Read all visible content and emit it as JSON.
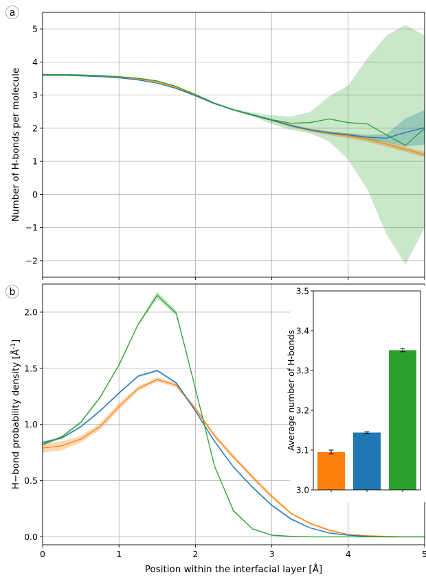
{
  "figure": {
    "xlabel": "Position within the interfacial layer [Å]",
    "panel_labels": [
      "a",
      "b"
    ],
    "colors": {
      "orange": "#ff7f0e",
      "blue": "#1f77b4",
      "green": "#2ca02c",
      "grid": "#b0b0b0"
    }
  },
  "chart_data": [
    {
      "type": "line",
      "panel": "a",
      "ylabel": "Number of H-bonds per molecule",
      "xlim": [
        0,
        5
      ],
      "ylim": [
        -2.5,
        5.5
      ],
      "grid": true,
      "xticks": [
        0,
        1,
        2,
        3,
        4,
        5
      ],
      "yticks": [
        -2,
        -1,
        0,
        1,
        2,
        3,
        4,
        5
      ],
      "ytick_labels": [
        "−2",
        "−1",
        "0",
        "1",
        "2",
        "3",
        "4",
        "5"
      ],
      "x": [
        0,
        0.25,
        0.5,
        0.75,
        1.0,
        1.25,
        1.5,
        1.75,
        2.0,
        2.25,
        2.5,
        2.75,
        3.0,
        3.25,
        3.5,
        3.75,
        4.0,
        4.25,
        4.5,
        4.75,
        5.0
      ],
      "series": [
        {
          "color": "#ff7f0e",
          "values": [
            3.61,
            3.61,
            3.6,
            3.58,
            3.55,
            3.49,
            3.4,
            3.23,
            3.0,
            2.75,
            2.55,
            2.4,
            2.24,
            2.08,
            1.94,
            1.85,
            1.77,
            1.67,
            1.52,
            1.36,
            1.2
          ],
          "lower": [
            3.6,
            3.6,
            3.59,
            3.57,
            3.54,
            3.48,
            3.39,
            3.22,
            2.99,
            2.74,
            2.54,
            2.38,
            2.21,
            2.04,
            1.89,
            1.79,
            1.7,
            1.59,
            1.44,
            1.28,
            1.12
          ],
          "upper": [
            3.62,
            3.62,
            3.61,
            3.59,
            3.56,
            3.5,
            3.41,
            3.24,
            3.01,
            2.76,
            2.56,
            2.42,
            2.27,
            2.12,
            1.99,
            1.91,
            1.84,
            1.75,
            1.6,
            1.44,
            1.28
          ]
        },
        {
          "color": "#1f77b4",
          "values": [
            3.6,
            3.6,
            3.58,
            3.56,
            3.52,
            3.46,
            3.36,
            3.2,
            2.98,
            2.74,
            2.55,
            2.39,
            2.24,
            2.08,
            1.95,
            1.86,
            1.8,
            1.73,
            1.7,
            1.87,
            2.02
          ],
          "lower": [
            3.59,
            3.59,
            3.57,
            3.55,
            3.51,
            3.45,
            3.35,
            3.19,
            2.97,
            2.73,
            2.54,
            2.38,
            2.22,
            2.05,
            1.92,
            1.82,
            1.75,
            1.66,
            1.58,
            1.45,
            1.5
          ],
          "upper": [
            3.61,
            3.61,
            3.59,
            3.57,
            3.53,
            3.47,
            3.37,
            3.21,
            2.99,
            2.75,
            2.56,
            2.4,
            2.26,
            2.11,
            1.98,
            1.9,
            1.85,
            1.8,
            1.82,
            2.3,
            2.55
          ]
        },
        {
          "color": "#2ca02c",
          "values": [
            3.62,
            3.62,
            3.61,
            3.59,
            3.56,
            3.51,
            3.43,
            3.26,
            3.02,
            2.76,
            2.56,
            2.41,
            2.26,
            2.15,
            2.17,
            2.28,
            2.17,
            2.13,
            1.8,
            1.48,
            2.0
          ],
          "lower": [
            3.61,
            3.61,
            3.6,
            3.58,
            3.55,
            3.5,
            3.42,
            3.25,
            3.01,
            2.75,
            2.53,
            2.35,
            2.13,
            1.95,
            1.85,
            1.6,
            1.05,
            0.15,
            -1.2,
            -2.12,
            -1.0
          ],
          "upper": [
            3.63,
            3.63,
            3.62,
            3.6,
            3.57,
            3.52,
            3.44,
            3.27,
            3.03,
            2.77,
            2.59,
            2.47,
            2.39,
            2.35,
            2.49,
            2.96,
            3.29,
            4.11,
            4.8,
            5.12,
            4.8
          ]
        }
      ]
    },
    {
      "type": "line",
      "panel": "b",
      "ylabel": "H−bond probability density [Å",
      "ylabel_sup": "-1",
      "ylabel_end": "]",
      "xlabel": "Position within the interfacial layer [Å]",
      "xlim": [
        0,
        5
      ],
      "ylim": [
        -0.07,
        2.25
      ],
      "grid": true,
      "xticks": [
        0,
        1,
        2,
        3,
        4,
        5
      ],
      "yticks": [
        0.0,
        0.5,
        1.0,
        1.5,
        2.0
      ],
      "ytick_labels": [
        "0.0",
        "0.5",
        "1.0",
        "1.5",
        "2.0"
      ],
      "x": [
        0,
        0.25,
        0.5,
        0.75,
        1.0,
        1.25,
        1.5,
        1.75,
        2.0,
        2.25,
        2.5,
        2.75,
        3.0,
        3.25,
        3.5,
        3.75,
        4.0,
        4.25,
        4.5,
        4.75,
        5.0
      ],
      "series": [
        {
          "color": "#ff7f0e",
          "values": [
            0.79,
            0.81,
            0.87,
            0.98,
            1.16,
            1.32,
            1.4,
            1.35,
            1.14,
            0.9,
            0.71,
            0.53,
            0.36,
            0.21,
            0.12,
            0.06,
            0.02,
            0.01,
            0.005,
            0.0,
            0.0
          ],
          "lower": [
            0.75,
            0.77,
            0.84,
            0.95,
            1.13,
            1.3,
            1.38,
            1.33,
            1.12,
            0.88,
            0.69,
            0.51,
            0.34,
            0.2,
            0.11,
            0.05,
            0.015,
            0.005,
            0.0,
            0.0,
            0.0
          ],
          "upper": [
            0.83,
            0.85,
            0.9,
            1.01,
            1.19,
            1.34,
            1.42,
            1.37,
            1.16,
            0.92,
            0.73,
            0.55,
            0.38,
            0.22,
            0.13,
            0.07,
            0.025,
            0.015,
            0.01,
            0.005,
            0.005
          ]
        },
        {
          "color": "#1f77b4",
          "values": [
            0.84,
            0.88,
            0.98,
            1.12,
            1.28,
            1.43,
            1.48,
            1.37,
            1.12,
            0.85,
            0.62,
            0.44,
            0.28,
            0.16,
            0.08,
            0.035,
            0.015,
            0.005,
            0.0,
            0.0,
            0.0
          ],
          "lower": [
            0.83,
            0.87,
            0.97,
            1.11,
            1.27,
            1.42,
            1.47,
            1.36,
            1.11,
            0.84,
            0.61,
            0.43,
            0.27,
            0.15,
            0.075,
            0.03,
            0.01,
            0.0,
            0.0,
            0.0,
            0.0
          ],
          "upper": [
            0.85,
            0.89,
            0.99,
            1.13,
            1.29,
            1.44,
            1.49,
            1.38,
            1.13,
            0.86,
            0.63,
            0.45,
            0.29,
            0.17,
            0.085,
            0.04,
            0.02,
            0.01,
            0.005,
            0.0,
            0.0
          ]
        },
        {
          "color": "#2ca02c",
          "values": [
            0.82,
            0.89,
            1.02,
            1.24,
            1.53,
            1.89,
            2.15,
            1.99,
            1.32,
            0.63,
            0.23,
            0.07,
            0.015,
            0.005,
            0.0,
            0.0,
            0.0,
            0.0,
            0.0,
            0.0,
            0.0
          ],
          "lower": [
            0.81,
            0.88,
            1.01,
            1.23,
            1.52,
            1.88,
            2.12,
            1.97,
            1.31,
            0.62,
            0.22,
            0.065,
            0.01,
            0.0,
            0.0,
            0.0,
            0.0,
            0.0,
            0.0,
            0.0,
            0.0
          ],
          "upper": [
            0.83,
            0.9,
            1.03,
            1.25,
            1.54,
            1.9,
            2.18,
            2.01,
            1.33,
            0.64,
            0.24,
            0.075,
            0.02,
            0.01,
            0.005,
            0.0,
            0.0,
            0.0,
            0.0,
            0.0,
            0.0
          ]
        }
      ]
    },
    {
      "type": "bar",
      "panel": "b-inset",
      "ylabel": "Average number of H-bonds",
      "ylim": [
        3.0,
        3.5
      ],
      "yticks": [
        3.0,
        3.1,
        3.2,
        3.3,
        3.4,
        3.5
      ],
      "ytick_labels": [
        "3.0",
        "3.1",
        "3.2",
        "3.3",
        "3.4",
        "3.5"
      ],
      "values": [
        3.095,
        3.144,
        3.351
      ],
      "errors": [
        0.005,
        0.002,
        0.004
      ],
      "colors": [
        "#ff7f0e",
        "#1f77b4",
        "#2ca02c"
      ]
    }
  ]
}
